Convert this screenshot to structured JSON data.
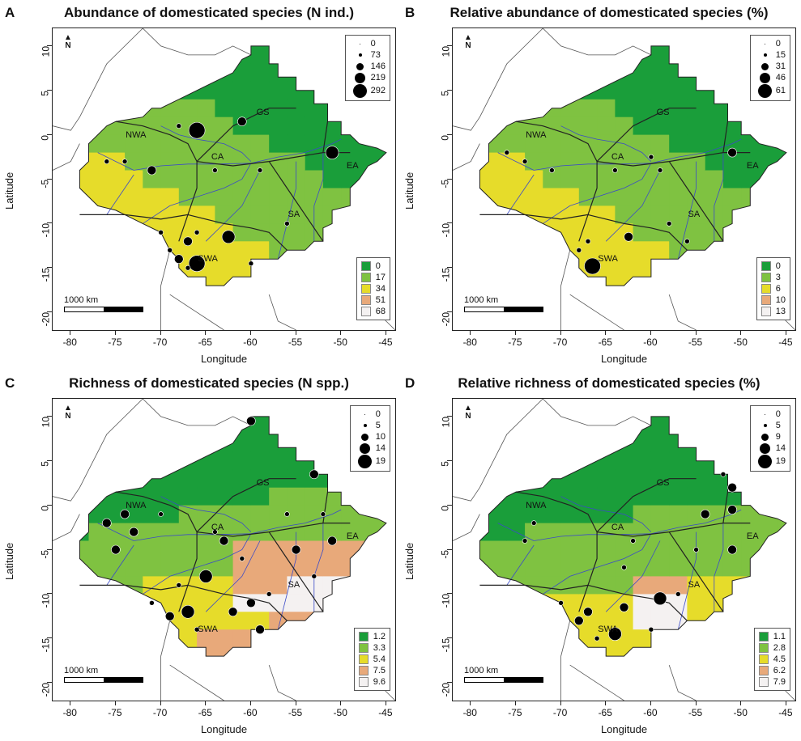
{
  "axis": {
    "x_ticks": [
      "-80",
      "-75",
      "-70",
      "-65",
      "-60",
      "-55",
      "-50",
      "-45"
    ],
    "y_ticks": [
      "10",
      "5",
      "0",
      "-5",
      "-10",
      "-15",
      "-20"
    ],
    "xlabel": "Longitude",
    "ylabel": "Latitude"
  },
  "scale_label": "1000 km",
  "north_label": "N",
  "regions": [
    "NWA",
    "GS",
    "CA",
    "EA",
    "SA",
    "SWA"
  ],
  "panels": [
    {
      "letter": "A",
      "title": "Abundance of domesticated species (N ind.)",
      "size_legend": [
        "0",
        "73",
        "146",
        "219",
        "292"
      ],
      "color_legend": [
        "0",
        "17",
        "34",
        "51",
        "68"
      ]
    },
    {
      "letter": "B",
      "title": "Relative abundance of domesticated species (%)",
      "size_legend": [
        "0",
        "15",
        "31",
        "46",
        "61"
      ],
      "color_legend": [
        "0",
        "3",
        "6",
        "10",
        "13"
      ]
    },
    {
      "letter": "C",
      "title": "Richness of domesticated species (N spp.)",
      "size_legend": [
        "0",
        "5",
        "10",
        "14",
        "19"
      ],
      "color_legend": [
        "1.2",
        "3.3",
        "5.4",
        "7.5",
        "9.6"
      ]
    },
    {
      "letter": "D",
      "title": "Relative richness of domesticated species (%)",
      "size_legend": [
        "0",
        "5",
        "9",
        "14",
        "19"
      ],
      "color_legend": [
        "1.1",
        "2.8",
        "4.5",
        "6.2",
        "7.9"
      ]
    }
  ],
  "colors": {
    "ramp": [
      "#1a9e3a",
      "#7fc241",
      "#e6dc2a",
      "#e8a97a",
      "#f4f1f1"
    ],
    "river": "#3b4bc8",
    "border": "#555555"
  }
}
